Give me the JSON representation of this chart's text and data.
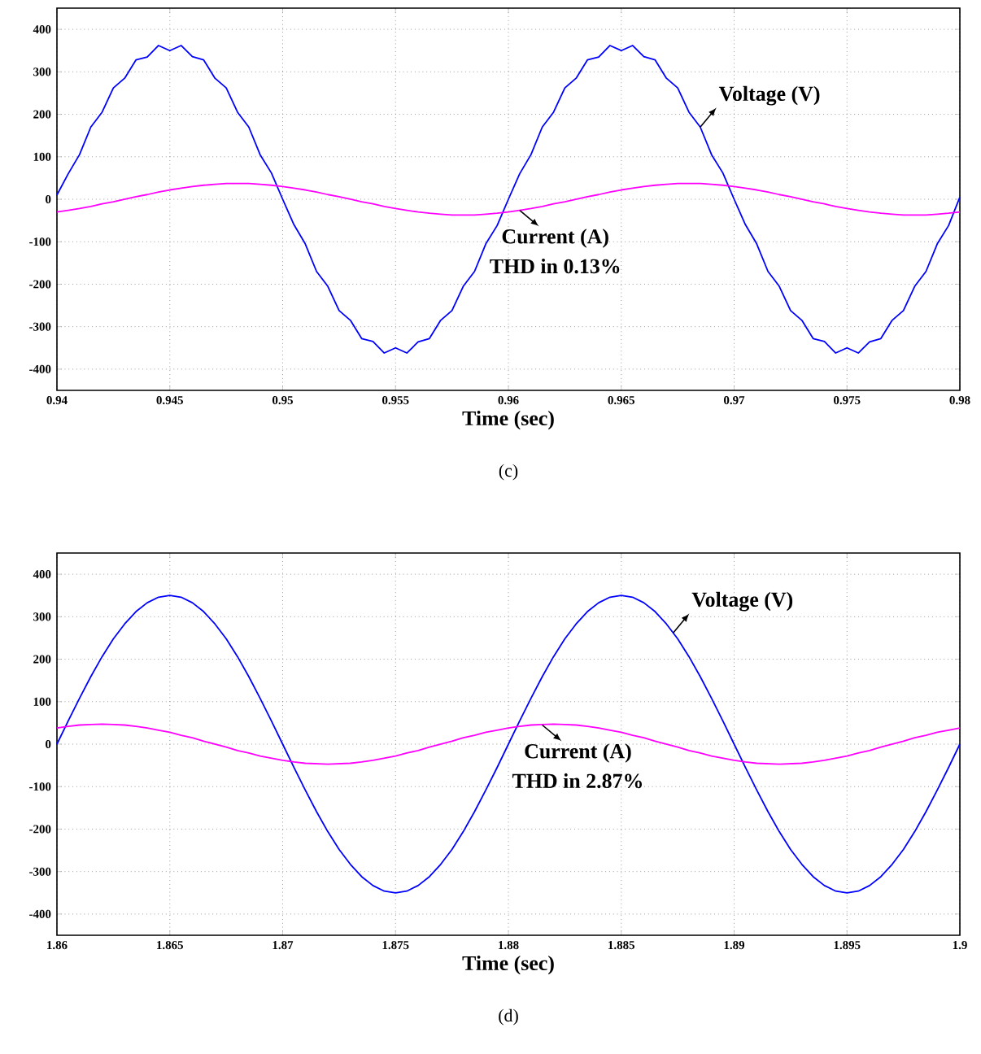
{
  "chart_data": [
    {
      "type": "line",
      "xlabel": "Time (sec)",
      "xlim": [
        0.94,
        0.98
      ],
      "ylim": [
        -450,
        450
      ],
      "xticks": [
        0.94,
        0.945,
        0.95,
        0.955,
        0.96,
        0.965,
        0.97,
        0.975,
        0.98
      ],
      "yticks": [
        -400,
        -300,
        -200,
        -100,
        0,
        100,
        200,
        300,
        400
      ],
      "grid": true,
      "x": [
        0.94,
        0.9405,
        0.941,
        0.9415,
        0.942,
        0.9425,
        0.943,
        0.9435,
        0.944,
        0.9445,
        0.945,
        0.9455,
        0.946,
        0.9465,
        0.947,
        0.9475,
        0.948,
        0.9485,
        0.949,
        0.9495,
        0.95,
        0.9505,
        0.951,
        0.9515,
        0.952,
        0.9525,
        0.953,
        0.9535,
        0.954,
        0.9545,
        0.955,
        0.9555,
        0.956,
        0.9565,
        0.957,
        0.9575,
        0.958,
        0.9585,
        0.959,
        0.9595,
        0.96,
        0.9605,
        0.961,
        0.9615,
        0.962,
        0.9625,
        0.963,
        0.9635,
        0.964,
        0.9645,
        0.965,
        0.9655,
        0.966,
        0.9665,
        0.967,
        0.9675,
        0.968,
        0.9685,
        0.969,
        0.9695,
        0.97,
        0.9705,
        0.971,
        0.9715,
        0.972,
        0.9725,
        0.973,
        0.9735,
        0.974,
        0.9745,
        0.975,
        0.9755,
        0.976,
        0.9765,
        0.977,
        0.9775,
        0.978,
        0.9785,
        0.979,
        0.9795,
        0.98
      ],
      "series": [
        {
          "name": null,
          "color": "#0000ff",
          "values": [
            10,
            60,
            105,
            170,
            205,
            262,
            285,
            328,
            335,
            362,
            350,
            362,
            336,
            328,
            285,
            262,
            205,
            170,
            105,
            62,
            0,
            -60,
            -105,
            -170,
            -205,
            -262,
            -285,
            -328,
            -335,
            -362,
            -350,
            -362,
            -336,
            -328,
            -285,
            -262,
            -205,
            -170,
            -105,
            -62,
            0,
            60,
            105,
            170,
            205,
            262,
            285,
            328,
            335,
            362,
            350,
            362,
            336,
            328,
            285,
            262,
            205,
            170,
            105,
            62,
            0,
            -60,
            -105,
            -170,
            -205,
            -262,
            -285,
            -328,
            -335,
            -362,
            -350,
            -362,
            -336,
            -328,
            -285,
            -262,
            -205,
            -170,
            -105,
            -62,
            5
          ]
        },
        {
          "name": null,
          "color": "#ff00ff",
          "values": [
            -30,
            -26,
            -22,
            -17,
            -11,
            -6,
            0,
            6,
            11,
            17,
            22,
            26,
            30,
            33,
            35,
            37,
            37,
            37,
            35,
            33,
            30,
            26,
            22,
            17,
            11,
            6,
            0,
            -6,
            -11,
            -17,
            -22,
            -26,
            -30,
            -33,
            -35,
            -37,
            -37,
            -37,
            -35,
            -33,
            -30,
            -26,
            -22,
            -17,
            -11,
            -6,
            0,
            6,
            11,
            17,
            22,
            26,
            30,
            33,
            35,
            37,
            37,
            37,
            35,
            33,
            30,
            26,
            22,
            17,
            11,
            6,
            0,
            -6,
            -11,
            -17,
            -22,
            -26,
            -30,
            -33,
            -35,
            -37,
            -37,
            -37,
            -35,
            -33,
            -30
          ]
        }
      ],
      "annotations": [
        {
          "text": "Voltage (V)",
          "x": 0.9685,
          "y": 170
        },
        {
          "text": "Current (A)",
          "x": 0.9605,
          "y": -26
        },
        "THD in 0.13%",
        "(c)"
      ]
    },
    {
      "type": "line",
      "xlabel": "Time (sec)",
      "xlim": [
        1.86,
        1.9
      ],
      "ylim": [
        -450,
        450
      ],
      "xticks": [
        1.86,
        1.865,
        1.87,
        1.875,
        1.88,
        1.885,
        1.89,
        1.895,
        1.9
      ],
      "yticks": [
        -400,
        -300,
        -200,
        -100,
        0,
        100,
        200,
        300,
        400
      ],
      "grid": true,
      "x": [
        1.86,
        1.8605,
        1.861,
        1.8615,
        1.862,
        1.8625,
        1.863,
        1.8635,
        1.864,
        1.8645,
        1.865,
        1.8655,
        1.866,
        1.8665,
        1.867,
        1.8675,
        1.868,
        1.8685,
        1.869,
        1.8695,
        1.87,
        1.8705,
        1.871,
        1.8715,
        1.872,
        1.8725,
        1.873,
        1.8735,
        1.874,
        1.8745,
        1.875,
        1.8755,
        1.876,
        1.8765,
        1.877,
        1.8775,
        1.878,
        1.8785,
        1.879,
        1.8795,
        1.88,
        1.8805,
        1.881,
        1.8815,
        1.882,
        1.8825,
        1.883,
        1.8835,
        1.884,
        1.8845,
        1.885,
        1.8855,
        1.886,
        1.8865,
        1.887,
        1.8875,
        1.888,
        1.8885,
        1.889,
        1.8895,
        1.89,
        1.8905,
        1.891,
        1.8915,
        1.892,
        1.8925,
        1.893,
        1.8935,
        1.894,
        1.8945,
        1.895,
        1.8955,
        1.896,
        1.8965,
        1.897,
        1.8975,
        1.898,
        1.8985,
        1.899,
        1.8995,
        1.9
      ],
      "series": [
        {
          "name": null,
          "color": "#0000ff",
          "values": [
            0,
            55,
            108,
            159,
            206,
            248,
            283,
            312,
            333,
            346,
            350,
            346,
            333,
            312,
            283,
            248,
            206,
            159,
            108,
            55,
            0,
            -55,
            -108,
            -159,
            -206,
            -248,
            -283,
            -312,
            -333,
            -346,
            -350,
            -346,
            -333,
            -312,
            -283,
            -248,
            -206,
            -159,
            -108,
            -55,
            0,
            55,
            108,
            159,
            206,
            248,
            283,
            312,
            333,
            346,
            350,
            346,
            333,
            312,
            283,
            248,
            206,
            159,
            108,
            55,
            0,
            -55,
            -108,
            -159,
            -206,
            -248,
            -283,
            -312,
            -333,
            -346,
            -350,
            -346,
            -333,
            -312,
            -283,
            -248,
            -206,
            -159,
            -108,
            -55,
            0
          ]
        },
        {
          "name": null,
          "color": "#ff00ff",
          "values": [
            38,
            42,
            45,
            46,
            47,
            46,
            45,
            42,
            38,
            33,
            28,
            21,
            15,
            7,
            0,
            -7,
            -15,
            -21,
            -28,
            -33,
            -38,
            -42,
            -45,
            -46,
            -47,
            -46,
            -45,
            -42,
            -38,
            -33,
            -28,
            -21,
            -15,
            -7,
            0,
            7,
            15,
            21,
            28,
            33,
            38,
            42,
            45,
            46,
            47,
            46,
            45,
            42,
            38,
            33,
            28,
            21,
            15,
            7,
            0,
            -7,
            -15,
            -21,
            -28,
            -33,
            -38,
            -42,
            -45,
            -46,
            -47,
            -46,
            -45,
            -42,
            -38,
            -33,
            -28,
            -21,
            -15,
            -7,
            0,
            7,
            15,
            21,
            28,
            33,
            38
          ]
        }
      ],
      "annotations": [
        {
          "text": "Voltage (V)",
          "x": 1.8873,
          "y": 262
        },
        {
          "text": "Current (A)",
          "x": 1.8815,
          "y": 45
        },
        "THD in 2.87%",
        "(d)"
      ]
    }
  ]
}
